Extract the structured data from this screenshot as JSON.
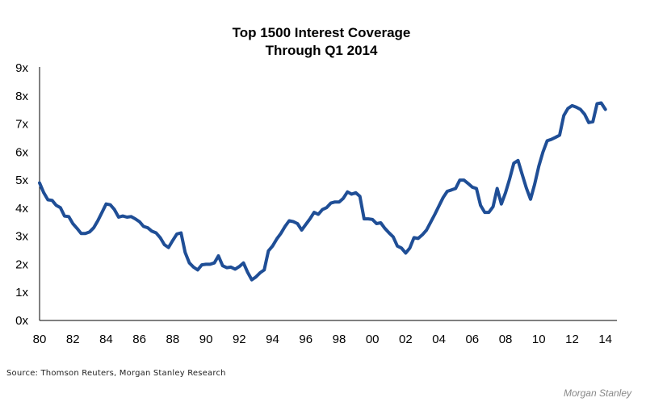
{
  "chart_data": {
    "type": "line",
    "title_lines": [
      "Top 1500 Interest Coverage",
      "Through Q1 2014"
    ],
    "xlabel": "",
    "ylabel": "",
    "xlim": [
      1980,
      2014.5
    ],
    "ylim": [
      0,
      9
    ],
    "x_ticks": [
      1980,
      1982,
      1984,
      1986,
      1988,
      1990,
      1992,
      1994,
      1996,
      1998,
      2000,
      2002,
      2004,
      2006,
      2008,
      2010,
      2012,
      2014
    ],
    "x_tick_labels": [
      "80",
      "82",
      "84",
      "86",
      "88",
      "90",
      "92",
      "94",
      "96",
      "98",
      "00",
      "02",
      "04",
      "06",
      "08",
      "10",
      "12",
      "14"
    ],
    "y_ticks": [
      0,
      1,
      2,
      3,
      4,
      5,
      6,
      7,
      8,
      9
    ],
    "y_tick_labels": [
      "0x",
      "1x",
      "2x",
      "3x",
      "4x",
      "5x",
      "6x",
      "7x",
      "8x",
      "9x"
    ],
    "grid": false,
    "legend": "none",
    "color": "#1f4e96",
    "series": [
      {
        "x": [
          1980.0,
          1980.25,
          1980.5,
          1980.75,
          1981.0,
          1981.25,
          1981.5,
          1981.75,
          1982.0,
          1982.25,
          1982.5,
          1982.75,
          1983.0,
          1983.25,
          1983.5,
          1983.75,
          1984.0,
          1984.25,
          1984.5,
          1984.75,
          1985.0,
          1985.25,
          1985.5,
          1985.75,
          1986.0,
          1986.25,
          1986.5,
          1986.75,
          1987.0,
          1987.25,
          1987.5,
          1987.75,
          1988.0,
          1988.25,
          1988.5,
          1988.75,
          1989.0,
          1989.25,
          1989.5,
          1989.75,
          1990.0,
          1990.25,
          1990.5,
          1990.75,
          1991.0,
          1991.25,
          1991.5,
          1991.75,
          1992.0,
          1992.25,
          1992.5,
          1992.75,
          1993.0,
          1993.25,
          1993.5,
          1993.75,
          1994.0,
          1994.25,
          1994.5,
          1994.75,
          1995.0,
          1995.25,
          1995.5,
          1995.75,
          1996.0,
          1996.25,
          1996.5,
          1996.75,
          1997.0,
          1997.25,
          1997.5,
          1997.75,
          1998.0,
          1998.25,
          1998.5,
          1998.75,
          1999.0,
          1999.25,
          1999.5,
          1999.75,
          2000.0,
          2000.25,
          2000.5,
          2000.75,
          2001.0,
          2001.25,
          2001.5,
          2001.75,
          2002.0,
          2002.25,
          2002.5,
          2002.75,
          2003.0,
          2003.25,
          2003.5,
          2003.75,
          2004.0,
          2004.25,
          2004.5,
          2004.75,
          2005.0,
          2005.25,
          2005.5,
          2005.75,
          2006.0,
          2006.25,
          2006.5,
          2006.75,
          2007.0,
          2007.25,
          2007.5,
          2007.75,
          2008.0,
          2008.25,
          2008.5,
          2008.75,
          2009.0,
          2009.25,
          2009.5,
          2009.75,
          2010.0,
          2010.25,
          2010.5,
          2010.75,
          2011.0,
          2011.25,
          2011.5,
          2011.75,
          2012.0,
          2012.25,
          2012.5,
          2012.75,
          2013.0,
          2013.25,
          2013.5,
          2013.75,
          2014.0
        ],
        "values": [
          4.9,
          4.55,
          4.3,
          4.28,
          4.1,
          4.02,
          3.72,
          3.7,
          3.45,
          3.28,
          3.1,
          3.1,
          3.15,
          3.3,
          3.55,
          3.85,
          4.15,
          4.12,
          3.95,
          3.68,
          3.72,
          3.68,
          3.7,
          3.62,
          3.52,
          3.35,
          3.3,
          3.18,
          3.12,
          2.95,
          2.7,
          2.6,
          2.85,
          3.08,
          3.12,
          2.42,
          2.05,
          1.9,
          1.8,
          1.98,
          2.0,
          2.0,
          2.05,
          2.3,
          1.95,
          1.88,
          1.9,
          1.83,
          1.92,
          2.05,
          1.72,
          1.45,
          1.55,
          1.7,
          1.8,
          2.48,
          2.65,
          2.9,
          3.1,
          3.35,
          3.55,
          3.52,
          3.45,
          3.22,
          3.42,
          3.62,
          3.85,
          3.78,
          3.95,
          4.02,
          4.18,
          4.22,
          4.22,
          4.35,
          4.58,
          4.5,
          4.55,
          4.42,
          3.62,
          3.62,
          3.6,
          3.45,
          3.48,
          3.28,
          3.12,
          2.98,
          2.65,
          2.58,
          2.4,
          2.58,
          2.95,
          2.92,
          3.05,
          3.22,
          3.5,
          3.78,
          4.08,
          4.38,
          4.6,
          4.65,
          4.7,
          5.0,
          5.0,
          4.88,
          4.75,
          4.7,
          4.1,
          3.85,
          3.85,
          4.05,
          4.7,
          4.15,
          4.55,
          5.05,
          5.6,
          5.7,
          5.2,
          4.72,
          4.32,
          4.85,
          5.5,
          6.0,
          6.4,
          6.45,
          6.52,
          6.6,
          7.3,
          7.55,
          7.65,
          7.6,
          7.52,
          7.35,
          7.05,
          7.08,
          7.72,
          7.75,
          7.52
        ]
      }
    ]
  },
  "footer": {
    "source": "Source: Thomson Reuters, Morgan Stanley Research",
    "brand": "Morgan Stanley"
  }
}
